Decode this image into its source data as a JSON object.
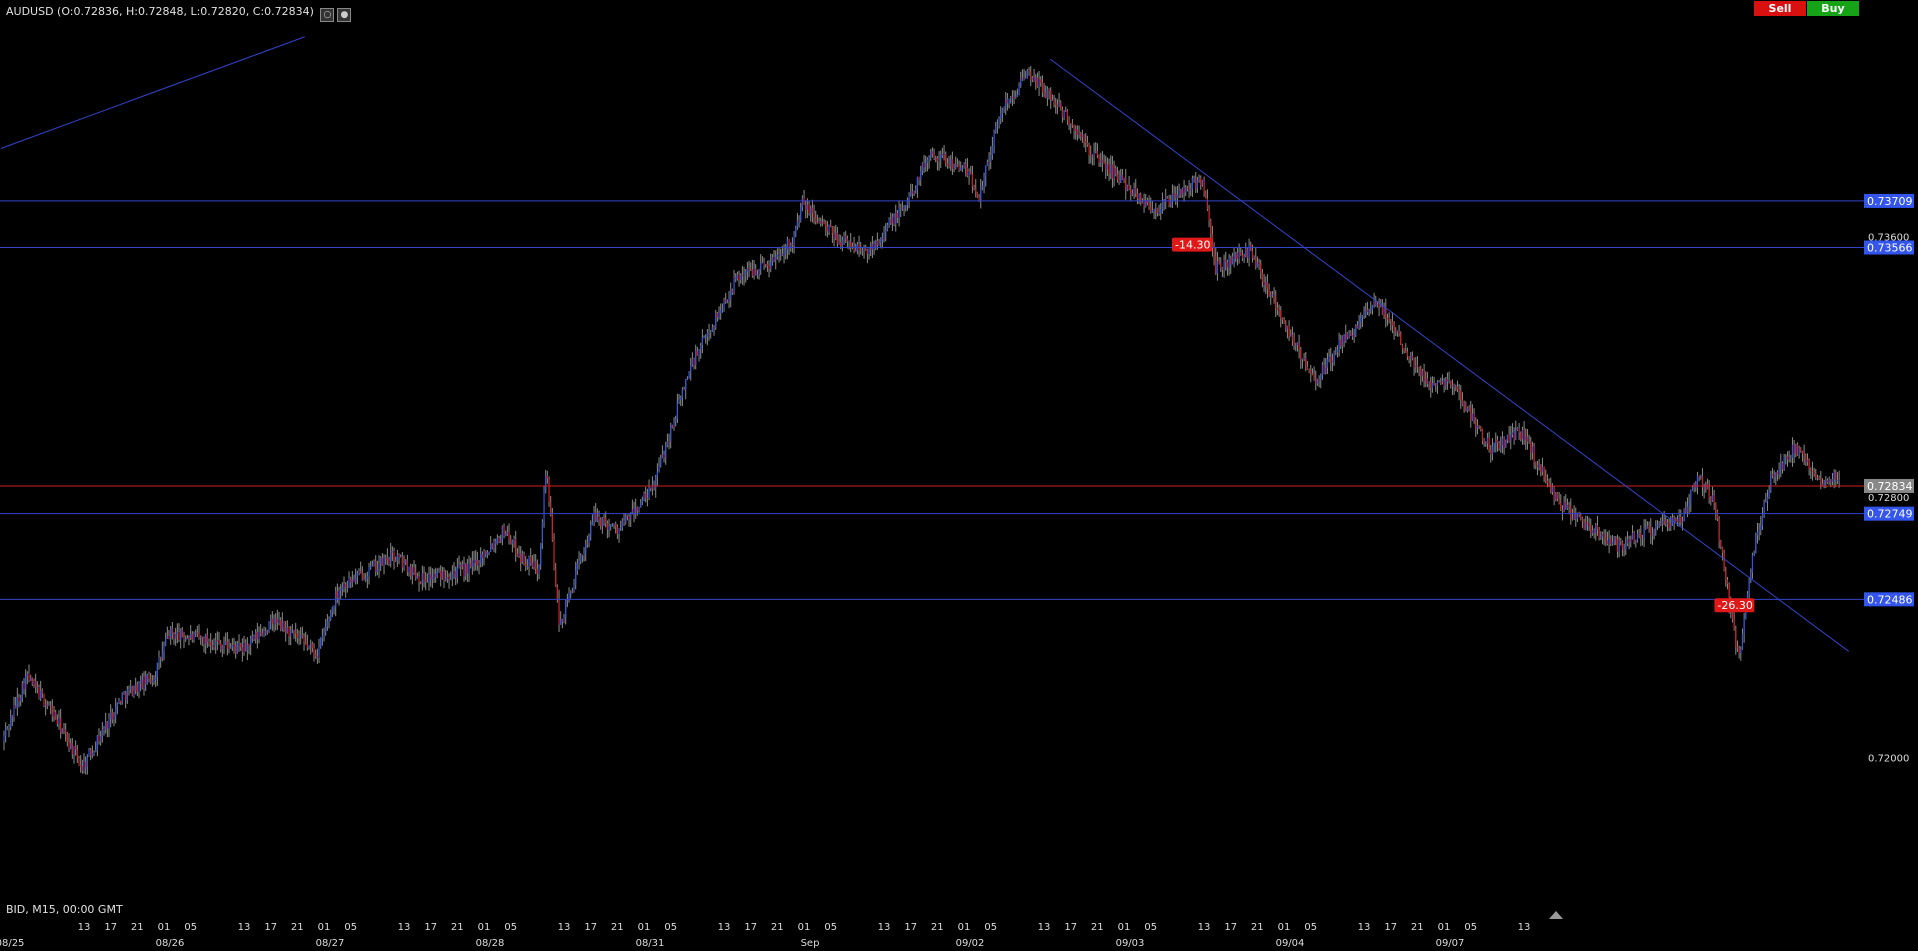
{
  "header": {
    "symbol_info": "AUDUSD (O:0.72836, H:0.72848, L:0.72820, C:0.72834)"
  },
  "buttons": {
    "sell": "Sell",
    "buy": "Buy"
  },
  "footer": {
    "mode": "BID, M15, 00:00 GMT"
  },
  "colors": {
    "background": "#000000",
    "trendline": "#3344cc",
    "hline": "#3344cc",
    "current_price_line": "#cc2222",
    "label_blue": "#3355ee",
    "label_current": "#888888",
    "bull": "#3355dd",
    "bear": "#cc2222",
    "wick": "#8c8c8c"
  },
  "chart_data": {
    "type": "candlestick",
    "symbol": "AUDUSD",
    "timeframe": "M15",
    "ylim": [
      0.71563,
      0.74203
    ],
    "y_ticks": [
      "0.73600",
      "0.72800",
      "0.72000"
    ],
    "horizontal_lines": [
      {
        "value": 0.73709,
        "label": "0.73709"
      },
      {
        "value": 0.73566,
        "label": "0.73566"
      },
      {
        "value": 0.72749,
        "label": "0.72749"
      },
      {
        "value": 0.72486,
        "label": "0.72486"
      }
    ],
    "current_price": {
      "value": 0.72834,
      "label": "0.72834"
    },
    "annotations": [
      {
        "text": "-14.30",
        "day": 7.3,
        "price": 0.73575
      },
      {
        "text": "-26.30",
        "day": 10.69,
        "price": 0.72468
      }
    ],
    "trendlines": [
      {
        "start": {
          "day": -0.02,
          "price": 0.7387
        },
        "end": {
          "day": 1.88,
          "price": 0.74213
        }
      },
      {
        "start": {
          "day": 6.54,
          "price": 0.74144
        },
        "end": {
          "day": 11.53,
          "price": 0.72326
        }
      }
    ],
    "x_date_labels": [
      "08/25",
      "08/26",
      "08/27",
      "08/28",
      "08/31",
      "Sep",
      "09/02",
      "09/03",
      "09/04",
      "09/07"
    ],
    "x_hour_labels": [
      "13",
      "17",
      "21",
      "01",
      "05",
      "13",
      "17",
      "21",
      "01",
      "05",
      "13",
      "17",
      "21",
      "01",
      "05",
      "13",
      "17",
      "21",
      "01",
      "05",
      "13",
      "17",
      "21",
      "01",
      "05",
      "13",
      "17",
      "21",
      "01",
      "05",
      "13",
      "17",
      "21",
      "01",
      "05",
      "13",
      "17",
      "21",
      "01",
      "05",
      "13",
      "17",
      "21",
      "01",
      "05",
      "13"
    ],
    "price_path": [
      [
        0.0,
        0.7205
      ],
      [
        0.15,
        0.7225
      ],
      [
        0.3,
        0.7215
      ],
      [
        0.5,
        0.7197
      ],
      [
        0.75,
        0.7219
      ],
      [
        0.95,
        0.7225
      ],
      [
        1.04,
        0.7238
      ],
      [
        1.3,
        0.7236
      ],
      [
        1.5,
        0.7233
      ],
      [
        1.7,
        0.7242
      ],
      [
        1.97,
        0.7232
      ],
      [
        2.1,
        0.7252
      ],
      [
        2.45,
        0.7262
      ],
      [
        2.62,
        0.7255
      ],
      [
        2.92,
        0.7258
      ],
      [
        3.14,
        0.727
      ],
      [
        3.25,
        0.7261
      ],
      [
        3.35,
        0.7258
      ],
      [
        3.4,
        0.729
      ],
      [
        3.48,
        0.724
      ],
      [
        3.7,
        0.7274
      ],
      [
        3.85,
        0.727
      ],
      [
        4.06,
        0.7282
      ],
      [
        4.3,
        0.732
      ],
      [
        4.6,
        0.7348
      ],
      [
        4.8,
        0.7352
      ],
      [
        4.95,
        0.736
      ],
      [
        5.0,
        0.737
      ],
      [
        5.2,
        0.736
      ],
      [
        5.4,
        0.7355
      ],
      [
        5.65,
        0.737
      ],
      [
        5.8,
        0.7386
      ],
      [
        6.03,
        0.738
      ],
      [
        6.1,
        0.7372
      ],
      [
        6.25,
        0.74
      ],
      [
        6.42,
        0.741
      ],
      [
        6.6,
        0.74
      ],
      [
        6.8,
        0.7386
      ],
      [
        7.0,
        0.7377
      ],
      [
        7.2,
        0.7368
      ],
      [
        7.5,
        0.7378
      ],
      [
        7.58,
        0.735
      ],
      [
        7.8,
        0.7356
      ],
      [
        8.0,
        0.7335
      ],
      [
        8.2,
        0.7315
      ],
      [
        8.35,
        0.7326
      ],
      [
        8.6,
        0.734
      ],
      [
        8.9,
        0.7315
      ],
      [
        9.05,
        0.7316
      ],
      [
        9.3,
        0.7295
      ],
      [
        9.5,
        0.73
      ],
      [
        9.7,
        0.728
      ],
      [
        9.8,
        0.7275
      ],
      [
        10.1,
        0.7265
      ],
      [
        10.3,
        0.727
      ],
      [
        10.5,
        0.7273
      ],
      [
        10.6,
        0.7287
      ],
      [
        10.7,
        0.7278
      ],
      [
        10.85,
        0.723
      ],
      [
        10.95,
        0.7265
      ],
      [
        11.05,
        0.7285
      ],
      [
        11.2,
        0.7295
      ],
      [
        11.35,
        0.7285
      ],
      [
        11.48,
        0.7287
      ]
    ]
  }
}
